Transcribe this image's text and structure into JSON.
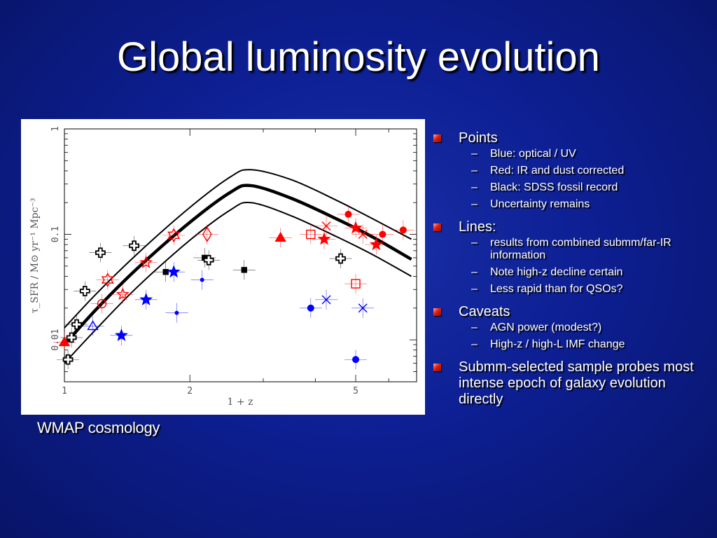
{
  "slide": {
    "title": "Global luminosity evolution",
    "caption": "WMAP cosmology"
  },
  "bullets": [
    {
      "text": "Points",
      "subs": [
        "Blue: optical / UV",
        "Red: IR and dust corrected",
        "Black: SDSS fossil record",
        "Uncertainty remains"
      ]
    },
    {
      "text": "Lines:",
      "subs": [
        "results from combined submm/far-IR information",
        "Note high-z decline certain",
        "Less rapid than for QSOs?"
      ]
    },
    {
      "text": "Caveats",
      "subs": [
        "AGN power (modest?)",
        "High-z / high-L IMF change"
      ]
    },
    {
      "text": "Submm-selected sample probes most intense epoch of galaxy evolution directly",
      "subs": []
    }
  ],
  "colors": {
    "background": "#0d1f93",
    "optical": "#0000ff",
    "ir": "#ff0000",
    "fossil": "#000000",
    "bullet": "#e02010"
  },
  "chart_data": {
    "type": "scatter",
    "xlabel": "1 + z",
    "ylabel": "τ_SFR / M⊙ yr⁻¹ Mpc⁻³",
    "x_scale": "log",
    "y_scale": "log",
    "xlim": [
      1,
      7
    ],
    "ylim": [
      0.004,
      1
    ],
    "x_ticks": [
      {
        "v": 1,
        "label": "1"
      },
      {
        "v": 2,
        "label": "2"
      },
      {
        "v": 5,
        "label": "5"
      }
    ],
    "y_ticks": [
      {
        "v": 0.01,
        "label": "0.01"
      },
      {
        "v": 0.1,
        "label": "0.1"
      },
      {
        "v": 1,
        "label": "1"
      }
    ],
    "curves": [
      {
        "kind": "best-fit",
        "x": [
          1,
          1.2,
          1.5,
          2.0,
          2.5,
          2.8,
          3.5,
          4.5,
          5.5,
          6.8
        ],
        "y": [
          0.009,
          0.02,
          0.048,
          0.13,
          0.25,
          0.29,
          0.22,
          0.14,
          0.094,
          0.058
        ]
      },
      {
        "kind": "upper",
        "x": [
          1,
          1.2,
          1.5,
          2.0,
          2.5,
          2.8,
          3.5,
          4.5,
          5.5,
          6.8
        ],
        "y": [
          0.013,
          0.028,
          0.066,
          0.18,
          0.35,
          0.41,
          0.33,
          0.21,
          0.14,
          0.09
        ]
      },
      {
        "kind": "lower",
        "x": [
          1,
          1.2,
          1.5,
          2.0,
          2.5,
          2.8,
          3.5,
          4.5,
          5.5,
          6.8
        ],
        "y": [
          0.006,
          0.013,
          0.032,
          0.088,
          0.17,
          0.2,
          0.15,
          0.095,
          0.064,
          0.04
        ]
      }
    ],
    "points": [
      {
        "x": 1.0,
        "y": 0.0095,
        "group": "ir",
        "marker": "triangle",
        "filled": true
      },
      {
        "x": 1.02,
        "y": 0.0065,
        "group": "fossil",
        "marker": "cross",
        "filled": false
      },
      {
        "x": 1.04,
        "y": 0.0105,
        "group": "fossil",
        "marker": "cross",
        "filled": false
      },
      {
        "x": 1.07,
        "y": 0.014,
        "group": "fossil",
        "marker": "cross",
        "filled": false
      },
      {
        "x": 1.12,
        "y": 0.029,
        "group": "fossil",
        "marker": "cross",
        "filled": false
      },
      {
        "x": 1.22,
        "y": 0.067,
        "group": "fossil",
        "marker": "cross",
        "filled": false
      },
      {
        "x": 1.17,
        "y": 0.0135,
        "group": "optical",
        "marker": "triangle",
        "filled": false
      },
      {
        "x": 1.23,
        "y": 0.022,
        "group": "ir",
        "marker": "circle",
        "filled": false
      },
      {
        "x": 1.27,
        "y": 0.037,
        "group": "ir",
        "marker": "star6",
        "filled": false
      },
      {
        "x": 1.37,
        "y": 0.011,
        "group": "optical",
        "marker": "star",
        "filled": true
      },
      {
        "x": 1.38,
        "y": 0.027,
        "group": "ir",
        "marker": "star",
        "filled": false
      },
      {
        "x": 1.47,
        "y": 0.078,
        "group": "fossil",
        "marker": "cross",
        "filled": false
      },
      {
        "x": 1.57,
        "y": 0.054,
        "group": "ir",
        "marker": "star",
        "filled": false
      },
      {
        "x": 1.57,
        "y": 0.024,
        "group": "optical",
        "marker": "star",
        "filled": true
      },
      {
        "x": 1.75,
        "y": 0.044,
        "group": "fossil",
        "marker": "square",
        "filled": true
      },
      {
        "x": 1.83,
        "y": 0.098,
        "group": "ir",
        "marker": "star6",
        "filled": false
      },
      {
        "x": 1.83,
        "y": 0.044,
        "group": "optical",
        "marker": "star",
        "filled": true
      },
      {
        "x": 1.86,
        "y": 0.018,
        "group": "optical",
        "marker": "dot",
        "filled": true
      },
      {
        "x": 2.2,
        "y": 0.1,
        "group": "ir",
        "marker": "diamond",
        "filled": false
      },
      {
        "x": 2.14,
        "y": 0.037,
        "group": "optical",
        "marker": "dot",
        "filled": true
      },
      {
        "x": 2.17,
        "y": 0.06,
        "group": "fossil",
        "marker": "square",
        "filled": true
      },
      {
        "x": 2.22,
        "y": 0.057,
        "group": "fossil",
        "marker": "cross",
        "filled": false
      },
      {
        "x": 2.7,
        "y": 0.046,
        "group": "fossil",
        "marker": "square",
        "filled": true
      },
      {
        "x": 3.3,
        "y": 0.093,
        "group": "ir",
        "marker": "triangle",
        "filled": true
      },
      {
        "x": 3.9,
        "y": 0.1,
        "group": "ir",
        "marker": "square",
        "filled": false
      },
      {
        "x": 3.9,
        "y": 0.02,
        "group": "optical",
        "marker": "dot",
        "filled": true
      },
      {
        "x": 4.2,
        "y": 0.09,
        "group": "ir",
        "marker": "star",
        "filled": true
      },
      {
        "x": 4.25,
        "y": 0.12,
        "group": "ir",
        "marker": "x",
        "filled": false
      },
      {
        "x": 4.25,
        "y": 0.024,
        "group": "optical",
        "marker": "x",
        "filled": false
      },
      {
        "x": 4.6,
        "y": 0.059,
        "group": "fossil",
        "marker": "cross",
        "filled": false
      },
      {
        "x": 4.8,
        "y": 0.155,
        "group": "ir",
        "marker": "dot",
        "filled": true
      },
      {
        "x": 5.0,
        "y": 0.034,
        "group": "ir",
        "marker": "square",
        "filled": false
      },
      {
        "x": 5.0,
        "y": 0.115,
        "group": "ir",
        "marker": "star",
        "filled": true
      },
      {
        "x": 5.0,
        "y": 0.0065,
        "group": "optical",
        "marker": "dot",
        "filled": true
      },
      {
        "x": 5.2,
        "y": 0.1,
        "group": "ir",
        "marker": "x",
        "filled": false
      },
      {
        "x": 5.2,
        "y": 0.02,
        "group": "optical",
        "marker": "x",
        "filled": false
      },
      {
        "x": 5.6,
        "y": 0.08,
        "group": "ir",
        "marker": "star",
        "filled": true
      },
      {
        "x": 5.8,
        "y": 0.1,
        "group": "ir",
        "marker": "dot",
        "filled": true
      },
      {
        "x": 6.5,
        "y": 0.11,
        "group": "ir",
        "marker": "dot",
        "filled": true
      }
    ]
  }
}
